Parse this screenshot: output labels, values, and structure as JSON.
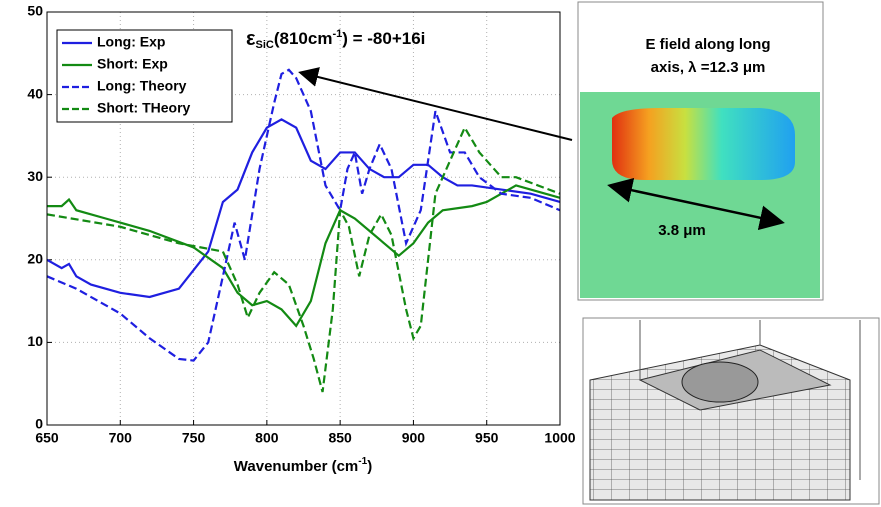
{
  "chart_data": {
    "type": "line",
    "x_label": [
      "Wavenumber (cm",
      "-1",
      ")"
    ],
    "annotation": [
      "ε",
      "SiC",
      "(810cm",
      "-1",
      ") = -80+16i"
    ],
    "xlim": [
      650,
      1000
    ],
    "xticks": [
      650,
      700,
      750,
      800,
      850,
      900,
      950,
      1000
    ],
    "ylim": [
      0,
      50
    ],
    "yticks": [
      0,
      10,
      20,
      30,
      40,
      50
    ],
    "grid": true,
    "legend": "upper left",
    "series": [
      {
        "name": "Long: Exp",
        "color": "#1f1fe0",
        "linestyle": "solid",
        "x": [
          650,
          660,
          665,
          670,
          680,
          700,
          720,
          740,
          760,
          770,
          780,
          790,
          800,
          810,
          820,
          830,
          840,
          850,
          860,
          870,
          880,
          890,
          900,
          910,
          920,
          930,
          940,
          960,
          980,
          1000
        ],
        "values": [
          20,
          19,
          19.5,
          18,
          17,
          16,
          15.5,
          16.5,
          21,
          27,
          28.5,
          33,
          36,
          37,
          36,
          32,
          31,
          33,
          33,
          31,
          30,
          30,
          31.5,
          31.5,
          30,
          29,
          29,
          28.5,
          28,
          27
        ]
      },
      {
        "name": "Short: Exp",
        "color": "#138a13",
        "linestyle": "solid",
        "x": [
          650,
          660,
          665,
          670,
          690,
          720,
          750,
          770,
          780,
          790,
          800,
          810,
          820,
          830,
          840,
          850,
          860,
          870,
          880,
          890,
          900,
          910,
          920,
          940,
          950,
          970,
          1000
        ],
        "values": [
          26.5,
          26.5,
          27.3,
          26,
          25,
          23.5,
          21.5,
          19,
          16,
          14.5,
          15,
          14,
          12,
          15,
          22,
          26,
          25,
          23.5,
          22,
          20.5,
          22,
          24.5,
          26,
          26.5,
          27,
          29,
          27.5
        ]
      },
      {
        "name": "Long: Theory",
        "color": "#1f1fe0",
        "linestyle": "dashed",
        "x": [
          650,
          670,
          700,
          720,
          740,
          750,
          760,
          770,
          778,
          785,
          795,
          805,
          810,
          815,
          820,
          830,
          840,
          850,
          855,
          860,
          865,
          870,
          877,
          885,
          895,
          905,
          915,
          925,
          935,
          945,
          960,
          980,
          1000
        ],
        "values": [
          18,
          16.5,
          13.5,
          10.5,
          8,
          7.8,
          10,
          18,
          24.5,
          20,
          31,
          39,
          42.5,
          43,
          42,
          38,
          29,
          26,
          31,
          33,
          28,
          31,
          34,
          31,
          22,
          26,
          38,
          33,
          33,
          30,
          28,
          27.5,
          26
        ]
      },
      {
        "name": "Short: THeory",
        "color": "#138a13",
        "linestyle": "dashed",
        "x": [
          650,
          700,
          740,
          770,
          780,
          787,
          795,
          805,
          815,
          825,
          832,
          838,
          845,
          850,
          856,
          863,
          870,
          878,
          885,
          895,
          900,
          905,
          915,
          925,
          935,
          945,
          960,
          970,
          1000
        ],
        "values": [
          25.5,
          24,
          22,
          21,
          17,
          13,
          16,
          18.5,
          17,
          12,
          8,
          4,
          14,
          26,
          24,
          18,
          23,
          25.5,
          23,
          14,
          10.5,
          12,
          28,
          32,
          36,
          33,
          30,
          30,
          28
        ]
      }
    ]
  },
  "inset": {
    "title": [
      "E field along long",
      "axis, λ =12.3 μm"
    ],
    "scale_label": "3.8 μm"
  }
}
